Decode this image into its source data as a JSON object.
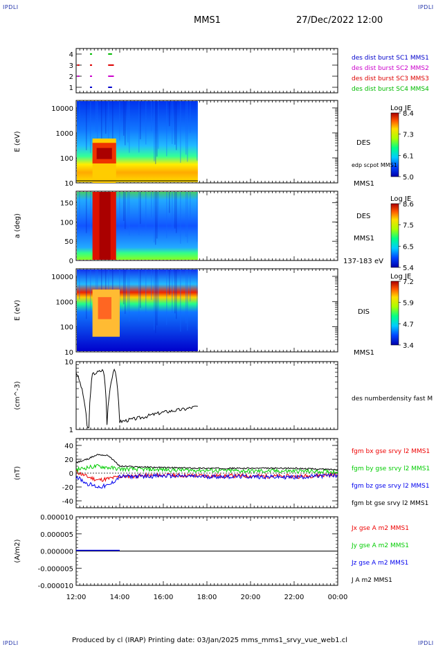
{
  "header": {
    "corner_tl": "IPDLI",
    "corner_tr": "IPDLI",
    "title": "MMS1",
    "datetime": "27/Dec/2022 12:00",
    "corner_bl": "IPDLI",
    "corner_br": "IPDLI",
    "footer": "Produced by cl (IRAP)   Printing date: 03/Jan/2025   mms_mms1_srvy_vue_web1.cl"
  },
  "colors": {
    "mms1": "#0000cc",
    "mms2": "#cc00cc",
    "mms3": "#dd0000",
    "mms4": "#00bb00",
    "bx": "#ee0000",
    "by": "#00cc00",
    "bz": "#0000ee",
    "bt": "#000000"
  },
  "chart_data": [
    {
      "type": "scatter",
      "id": "burst",
      "ylim": [
        0.5,
        4.5
      ],
      "yticks": [
        "1",
        "2",
        "3",
        "4"
      ],
      "legend": [
        {
          "label": "des dist burst SC1 MMS1",
          "color": "#0000cc"
        },
        {
          "label": "des dist burst SC2 MMS2",
          "color": "#cc00cc"
        },
        {
          "label": "des dist burst SC3 MMS3",
          "color": "#dd0000"
        },
        {
          "label": "des dist burst SC4 MMS4",
          "color": "#00bb00"
        }
      ],
      "series": [
        {
          "name": "des dist burst SC1 MMS1",
          "y": 1,
          "x": [
            "12:40",
            "13:30",
            "13:35"
          ]
        },
        {
          "name": "des dist burst SC2 MMS2",
          "y": 2,
          "x": [
            "12:05",
            "12:40",
            "13:30",
            "13:35",
            "13:40"
          ]
        },
        {
          "name": "des dist burst SC3 MMS3",
          "y": 3,
          "x": [
            "12:05",
            "12:40",
            "13:30",
            "13:35",
            "13:40"
          ]
        },
        {
          "name": "des dist burst SC4 MMS4",
          "y": 4,
          "x": [
            "12:40",
            "13:30",
            "13:35"
          ]
        }
      ]
    },
    {
      "type": "heatmap",
      "id": "des_energy",
      "ylabel": "E (eV)",
      "yscale": "log",
      "ylim": [
        10,
        20000
      ],
      "yticks": [
        "10",
        "100",
        "1000",
        "10000"
      ],
      "right_labels": [
        "DES",
        "MMS1"
      ],
      "overlay_label": "edp scpot MMS1",
      "colorbar": {
        "title": "Log JE",
        "ticks": [
          "8.4",
          "7.3",
          "6.1",
          "5.0"
        ]
      },
      "data_end": "17:35"
    },
    {
      "type": "heatmap",
      "id": "des_pitch",
      "ylabel": "a (deg)",
      "ylim": [
        0,
        180
      ],
      "yticks": [
        "0",
        "50",
        "100",
        "150"
      ],
      "right_labels": [
        "DES",
        "MMS1",
        "137-183 eV"
      ],
      "colorbar": {
        "title": "Log JE",
        "ticks": [
          "8.6",
          "7.5",
          "6.5",
          "5.4"
        ]
      },
      "data_end": "17:35"
    },
    {
      "type": "heatmap",
      "id": "dis_energy",
      "ylabel": "E (eV)",
      "yscale": "log",
      "ylim": [
        10,
        20000
      ],
      "yticks": [
        "10",
        "100",
        "1000",
        "10000"
      ],
      "right_labels": [
        "DIS",
        "MMS1"
      ],
      "colorbar": {
        "title": "Log JE",
        "ticks": [
          "7.2",
          "5.9",
          "4.7",
          "3.4"
        ]
      },
      "data_end": "17:35"
    },
    {
      "type": "line",
      "id": "density",
      "ylabel": "(cm^-3)",
      "yscale": "log",
      "ylim": [
        1,
        10
      ],
      "yticks": [
        "1",
        "10"
      ],
      "legend": [
        {
          "label": "des numberdensity fast M",
          "color": "#000000"
        }
      ],
      "x": [
        "12:00",
        "12:30",
        "12:35",
        "12:45",
        "13:15",
        "13:25",
        "13:45",
        "14:00",
        "15:00",
        "16:00",
        "17:00",
        "17:35"
      ],
      "values": [
        7,
        1.1,
        1.05,
        6.5,
        7.5,
        1.2,
        8,
        1.3,
        1.5,
        1.8,
        2.0,
        2.2
      ]
    },
    {
      "type": "line",
      "id": "fgm",
      "ylabel": "(nT)",
      "ylim": [
        -50,
        50
      ],
      "yticks": [
        "-40",
        "-20",
        "0",
        "20",
        "40"
      ],
      "legend": [
        {
          "label": "fgm bx gse srvy l2 MMS1",
          "color": "#ee0000"
        },
        {
          "label": "fgm by gse srvy l2 MMS1",
          "color": "#00cc00"
        },
        {
          "label": "fgm bz gse srvy l2 MMS1",
          "color": "#0000ee"
        },
        {
          "label": "fgm bt gse srvy l2 MMS1",
          "color": "#000000"
        }
      ],
      "x": [
        "12:00",
        "12:30",
        "13:00",
        "13:30",
        "14:00",
        "16:00",
        "18:00",
        "20:00",
        "22:00",
        "00:00"
      ],
      "series": [
        {
          "name": "fgm bx gse srvy l2 MMS1",
          "values": [
            2,
            -5,
            -10,
            -8,
            -5,
            -3,
            -4,
            -4,
            -5,
            -2
          ]
        },
        {
          "name": "fgm by gse srvy l2 MMS1",
          "values": [
            5,
            8,
            10,
            8,
            6,
            5,
            4,
            3,
            3,
            2
          ]
        },
        {
          "name": "fgm bz gse srvy l2 MMS1",
          "values": [
            -5,
            -15,
            -20,
            -18,
            -5,
            -4,
            -5,
            -5,
            -6,
            -3
          ]
        },
        {
          "name": "fgm bt gse srvy l2 MMS1",
          "values": [
            15,
            20,
            27,
            25,
            10,
            8,
            7,
            7,
            7,
            5
          ]
        }
      ]
    },
    {
      "type": "line",
      "id": "current",
      "ylabel": "(A/m2)",
      "ylim": [
        -1e-05,
        1e-05
      ],
      "yticks": [
        "-0.000010",
        "-0.000005",
        "0.000000",
        "0.000005",
        "0.000010"
      ],
      "legend": [
        {
          "label": "Jx gse A m2 MMS1",
          "color": "#ee0000"
        },
        {
          "label": "Jy gse A m2 MMS1",
          "color": "#00cc00"
        },
        {
          "label": "Jz gse A m2 MMS1",
          "color": "#0000ee"
        },
        {
          "label": "J A m2 MMS1",
          "color": "#000000"
        }
      ],
      "x": [
        "12:00",
        "00:00"
      ],
      "values": [
        0,
        0
      ]
    }
  ],
  "time_axis": {
    "ticks": [
      "12:00",
      "14:00",
      "16:00",
      "18:00",
      "20:00",
      "22:00",
      "00:00"
    ]
  }
}
